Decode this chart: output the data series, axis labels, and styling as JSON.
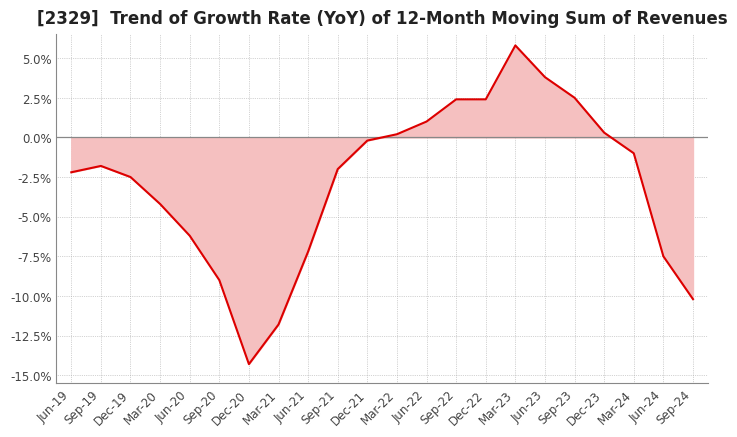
{
  "title": "[2329]  Trend of Growth Rate (YoY) of 12-Month Moving Sum of Revenues",
  "title_fontsize": 12,
  "line_color": "#dd0000",
  "fill_color": "#f5c0c0",
  "background_color": "#ffffff",
  "plot_bg_color": "#ffffff",
  "grid_color": "#aaaaaa",
  "zero_line_color": "#888888",
  "ylim": [
    -0.155,
    0.065
  ],
  "yticks": [
    0.05,
    0.025,
    0.0,
    -0.025,
    -0.05,
    -0.075,
    -0.1,
    -0.125,
    -0.15
  ],
  "x_labels": [
    "Jun-19",
    "Sep-19",
    "Dec-19",
    "Mar-20",
    "Jun-20",
    "Sep-20",
    "Dec-20",
    "Mar-21",
    "Jun-21",
    "Sep-21",
    "Dec-21",
    "Mar-22",
    "Jun-22",
    "Sep-22",
    "Dec-22",
    "Mar-23",
    "Jun-23",
    "Sep-23",
    "Dec-23",
    "Mar-24",
    "Jun-24",
    "Sep-24"
  ],
  "values": [
    -0.022,
    -0.018,
    -0.025,
    -0.042,
    -0.062,
    -0.09,
    -0.143,
    -0.118,
    -0.072,
    -0.02,
    -0.002,
    0.002,
    0.01,
    0.024,
    0.024,
    0.058,
    0.038,
    0.025,
    0.003,
    -0.01,
    -0.075,
    -0.102
  ]
}
